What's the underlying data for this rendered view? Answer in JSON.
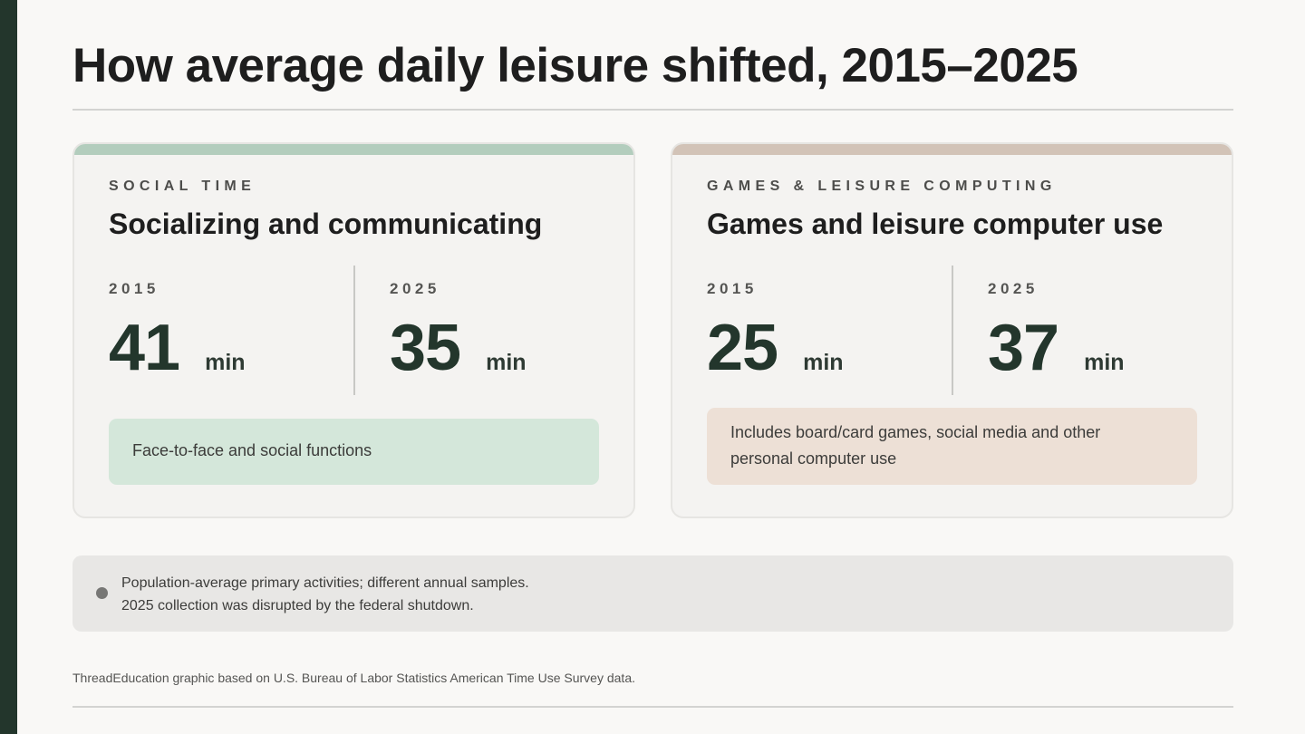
{
  "title": "How average daily leisure shifted, 2015–2025",
  "colors": {
    "sidebar": "#23362c",
    "social_accent": "#b3cdbd",
    "games_accent": "#d2c3b7",
    "social_note_bg": "#d4e7da",
    "games_note_bg": "#ede0d6",
    "value_text": "#23362c"
  },
  "cards": [
    {
      "eyebrow": "SOCIAL TIME",
      "title": "Socializing and communicating",
      "stats": [
        {
          "year": "2015",
          "value": "41",
          "unit": "min"
        },
        {
          "year": "2025",
          "value": "35",
          "unit": "min"
        }
      ],
      "note": "Face-to-face and social functions"
    },
    {
      "eyebrow": "GAMES & LEISURE COMPUTING",
      "title": "Games and leisure computer use",
      "stats": [
        {
          "year": "2015",
          "value": "25",
          "unit": "min"
        },
        {
          "year": "2025",
          "value": "37",
          "unit": "min"
        }
      ],
      "note_lines": [
        "Includes board/card games, social media and other",
        "personal computer use"
      ]
    }
  ],
  "caveat": {
    "lines": [
      "Population-average primary activities; different annual samples.",
      "2025 collection was disrupted by the federal shutdown."
    ]
  },
  "source": "ThreadEducation graphic based on U.S. Bureau of Labor Statistics American Time Use Survey data."
}
